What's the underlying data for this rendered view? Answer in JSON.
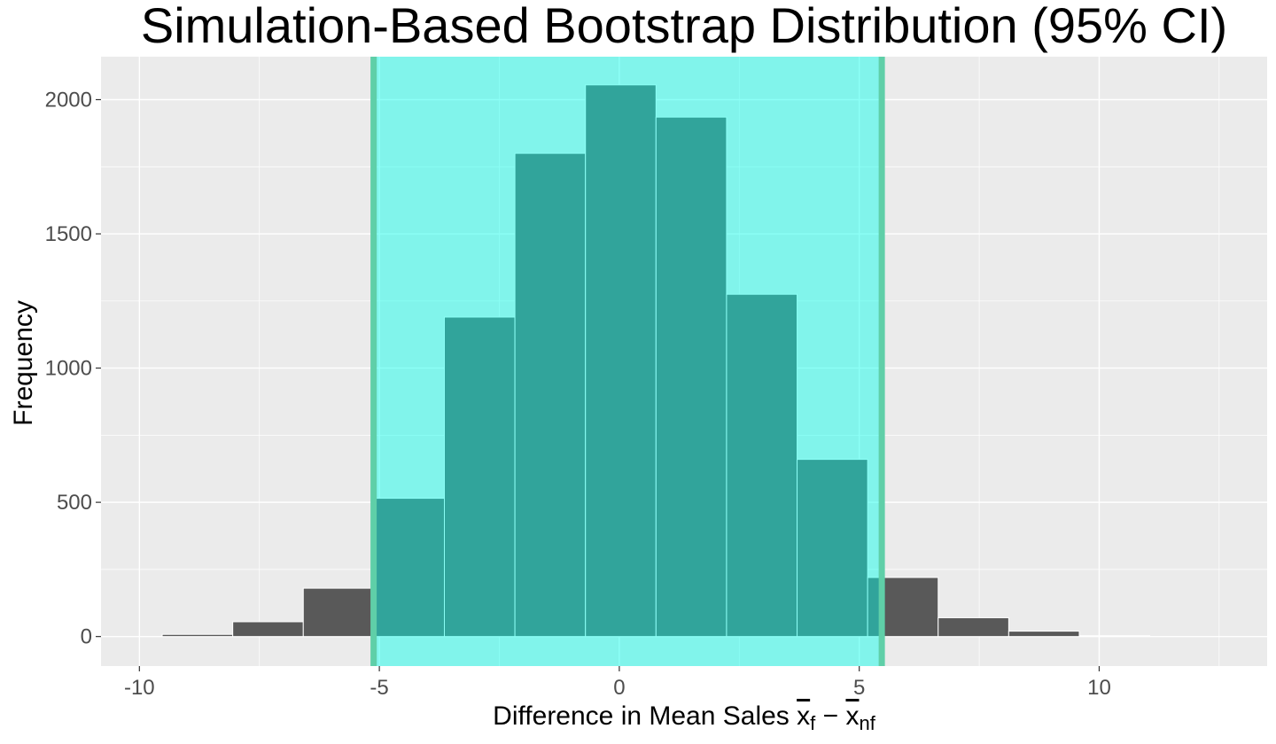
{
  "chart_data": {
    "type": "bar",
    "title": "Simulation-Based Bootstrap Distribution (95% CI)",
    "xlabel": "Difference in Mean Sales x̄f − x̄nf",
    "xlabel_parts": {
      "main": "Difference in Mean Sales ",
      "x": "x",
      "sub_f": "f",
      "minus": " − ",
      "sub_nf": "nf"
    },
    "ylabel": "Frequency",
    "xlim": [
      -10.8,
      13.5
    ],
    "ylim": [
      -110,
      2160
    ],
    "x_ticks": [
      -10,
      -5,
      0,
      5,
      10
    ],
    "y_ticks": [
      0,
      500,
      1000,
      1500,
      2000
    ],
    "bin_width": 1.47,
    "bins": [
      {
        "center": -8.79,
        "count": 8
      },
      {
        "center": -7.32,
        "count": 55
      },
      {
        "center": -5.85,
        "count": 180
      },
      {
        "center": -4.38,
        "count": 515
      },
      {
        "center": -2.91,
        "count": 1190
      },
      {
        "center": -1.44,
        "count": 1800
      },
      {
        "center": 0.03,
        "count": 2055
      },
      {
        "center": 1.5,
        "count": 1935
      },
      {
        "center": 2.97,
        "count": 1275
      },
      {
        "center": 4.44,
        "count": 660
      },
      {
        "center": 5.91,
        "count": 220
      },
      {
        "center": 7.38,
        "count": 70
      },
      {
        "center": 8.85,
        "count": 20
      },
      {
        "center": 10.32,
        "count": 3
      }
    ],
    "ci": {
      "lower": -5.12,
      "upper": 5.47
    },
    "grid": true,
    "colors": {
      "panel": "#ebebeb",
      "grid": "#ffffff",
      "bar_fill": "#595959",
      "bar_border": "#ffffff",
      "ci_shade": "#00ffea",
      "ci_shade_opacity": 0.45,
      "ci_line": "#5fcfa8"
    }
  }
}
